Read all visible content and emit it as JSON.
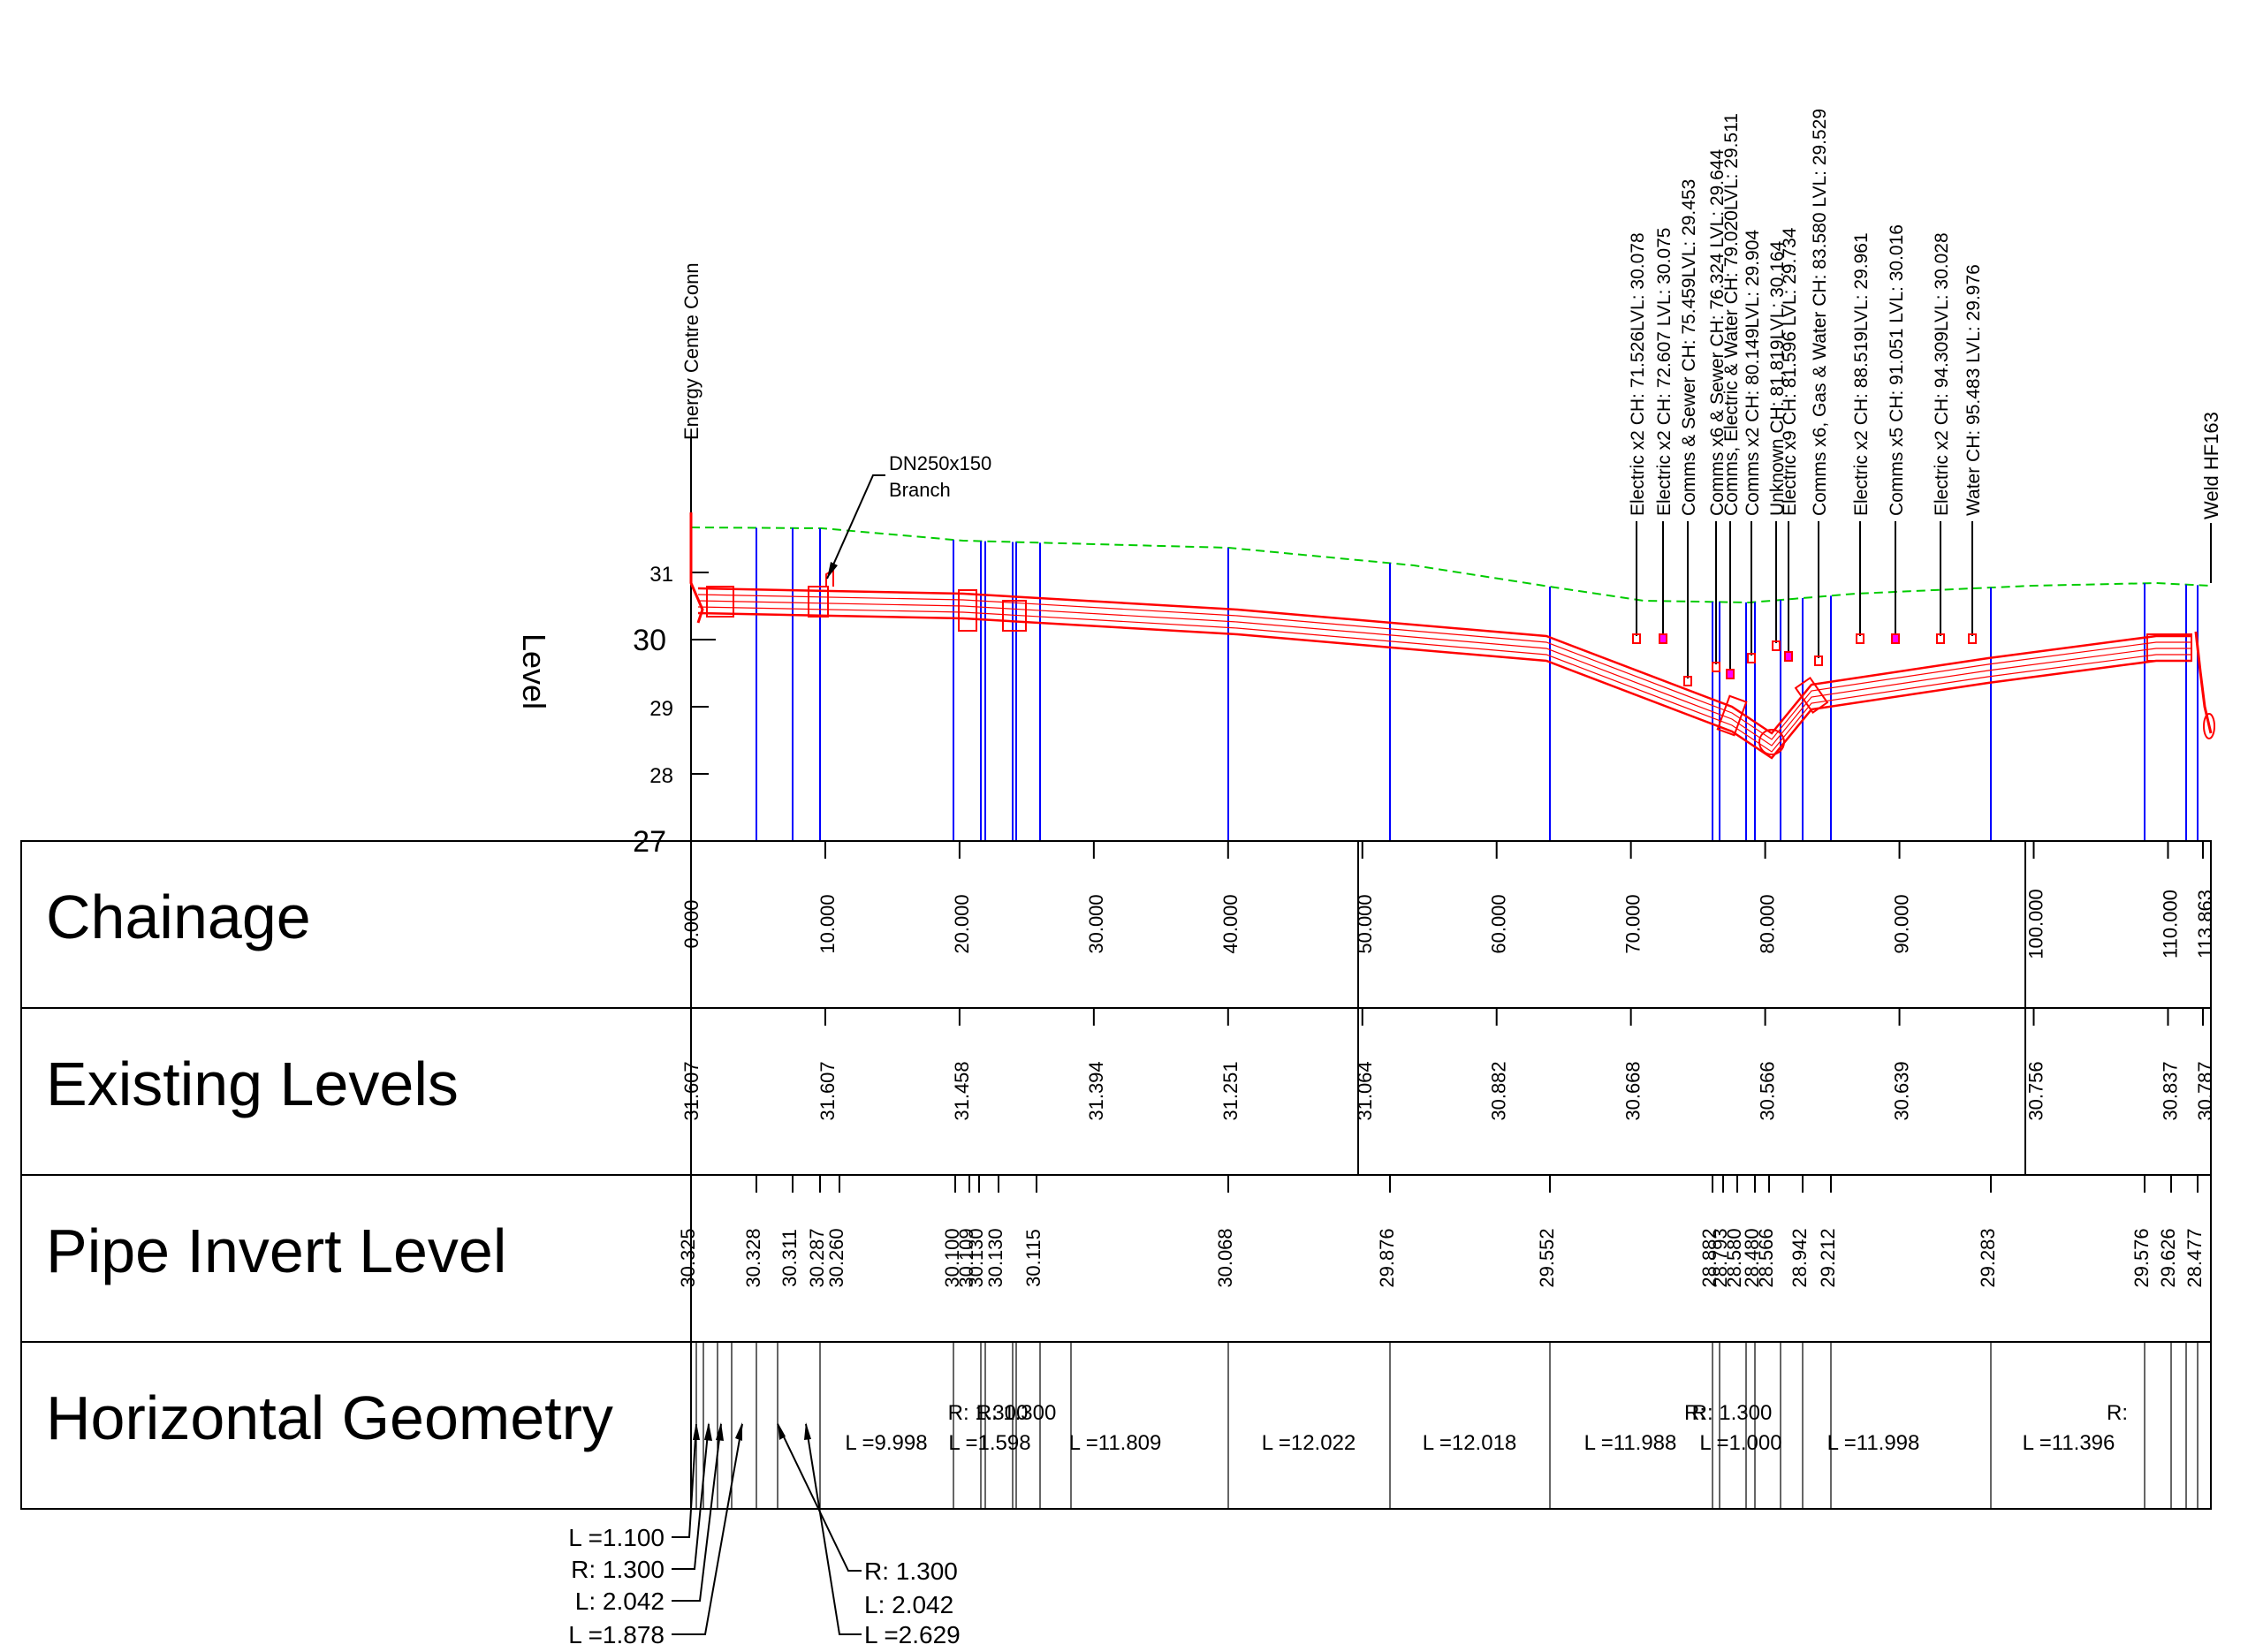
{
  "profile": {
    "axis_label": "Level",
    "y_ticks": [
      "31",
      "30",
      "29",
      "28",
      "27"
    ],
    "start_label": "Energy Centre Conn",
    "end_label": "Weld HF163",
    "branch_label": [
      "DN250x150",
      "Branch"
    ],
    "services": [
      "Electric x2 CH: 71.526LVL: 30.078",
      "Electric x2 CH: 72.607 LVL: 30.075",
      "Comms & Sewer CH: 75.459LVL: 29.453",
      "Comms x6 & Sewer CH: 76.324 LVL: 29.644",
      "Comms, Electric & Water CH: 79.020LVL: 29.511",
      "Comms x2 CH: 80.149LVL: 29.904",
      "Unknown CH: 81.819LVL: 30.164",
      "Electric x9 CH: 81.596 LVL: 29.734",
      "Comms x6, Gas & Water CH: 83.580 LVL: 29.529",
      "Electric x2 CH: 88.519LVL: 29.961",
      "Comms x5 CH: 91.051 LVL: 30.016",
      "Electric x2 CH: 94.309LVL: 30.028",
      "Water CH: 95.483 LVL: 29.976"
    ],
    "colors": {
      "pipe": "#ff0000",
      "ground": "#00cc00",
      "verticals": "#0000ff",
      "markers": "#ff00ff"
    }
  },
  "table": {
    "row_labels": [
      "Chainage",
      "Existing Levels",
      "Pipe Invert Level",
      "Horizontal Geometry"
    ],
    "chainage": [
      "0.000",
      "10.000",
      "20.000",
      "30.000",
      "40.000",
      "50.000",
      "60.000",
      "70.000",
      "80.000",
      "90.000",
      "100.000",
      "110.000",
      "113.863"
    ],
    "existing_levels": [
      "31.607",
      "31.607",
      "31.458",
      "31.394",
      "31.251",
      "31.064",
      "30.882",
      "30.668",
      "30.566",
      "30.639",
      "30.756",
      "30.837",
      "30.787"
    ],
    "invert_levels": [
      "30.325",
      "30.328",
      "30.311",
      "30.287",
      "30.260",
      "30.100",
      "30.109",
      "30.130",
      "30.130",
      "30.115",
      "30.068",
      "29.876",
      "29.552",
      "28.882",
      "28.793",
      "28.580",
      "28.480",
      "28.566",
      "28.942",
      "29.212",
      "29.283",
      "29.576",
      "29.626",
      "28.477"
    ],
    "geometry_labels": [
      "L =9.998",
      "L =11.809",
      "L =12.022",
      "L =12.018",
      "L =11.988",
      "L =11.998",
      "L =11.396"
    ],
    "geometry_overlaps": [
      "R: 1.300",
      "L =1.598",
      "R: 1.300",
      "R: 1.300",
      "L =1.000",
      "R:",
      "R:"
    ],
    "bottom_left_callout": [
      "L =1.100",
      "R: 1.300",
      "L: 2.042",
      "L =1.878"
    ],
    "bottom_right_callout": [
      "R: 1.300",
      "L: 2.042",
      "L =2.629"
    ]
  }
}
